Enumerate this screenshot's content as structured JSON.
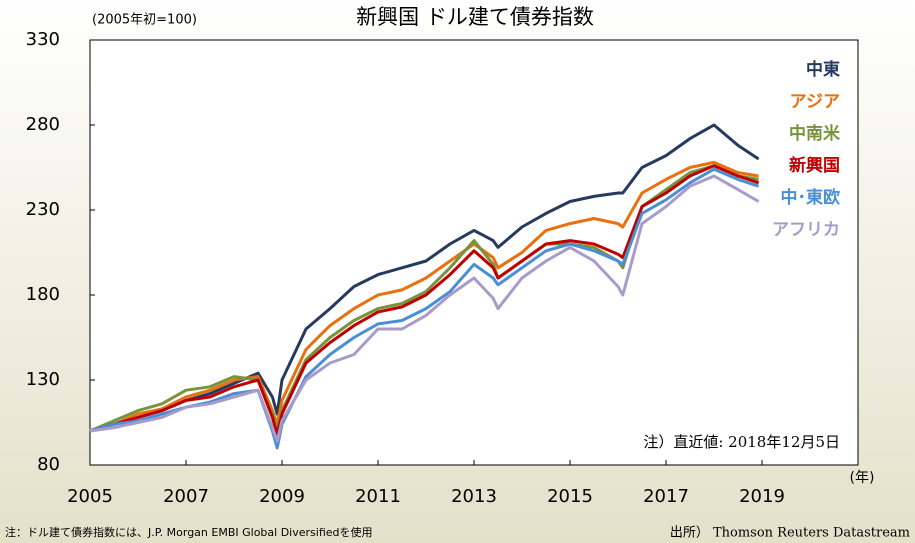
{
  "chart_data": {
    "type": "line",
    "title": "新興国 ドル建て債券指数",
    "y_label": "(2005年初=100)",
    "x_label": "(年)",
    "annotation": "注）直近値: 2018年12月5日",
    "footnote": "注：ドル建て債券指数には、J.P. Morgan EMBI Global Diversifiedを使用",
    "source": "出所） Thomson Reuters Datastream",
    "x": [
      2005,
      2005.5,
      2006,
      2006.5,
      2007,
      2007.5,
      2008,
      2008.5,
      2008.8,
      2008.9,
      2009,
      2009.5,
      2010,
      2010.5,
      2011,
      2011.5,
      2012,
      2012.5,
      2013,
      2013.4,
      2013.5,
      2014,
      2014.5,
      2015,
      2015.5,
      2016,
      2016.1,
      2016.5,
      2017,
      2017.5,
      2018,
      2018.5,
      2018.93
    ],
    "xlim": [
      2005,
      2021
    ],
    "xticks": [
      2005,
      2007,
      2009,
      2011,
      2013,
      2015,
      2017,
      2019
    ],
    "ylim": [
      80,
      330
    ],
    "yticks": [
      80,
      130,
      180,
      230,
      280,
      330
    ],
    "legend": "right",
    "series": [
      {
        "name": "中東",
        "color": "#243a5e",
        "values": [
          100,
          104,
          108,
          112,
          118,
          122,
          128,
          134,
          120,
          110,
          130,
          160,
          172,
          185,
          192,
          196,
          200,
          210,
          218,
          212,
          208,
          220,
          228,
          235,
          238,
          240,
          240,
          255,
          262,
          272,
          280,
          268,
          260
        ]
      },
      {
        "name": "アジア",
        "color": "#e8700f",
        "values": [
          100,
          104,
          110,
          113,
          120,
          124,
          130,
          132,
          112,
          104,
          118,
          148,
          162,
          172,
          180,
          183,
          190,
          200,
          210,
          202,
          196,
          205,
          218,
          222,
          225,
          222,
          220,
          240,
          248,
          255,
          258,
          252,
          250
        ]
      },
      {
        "name": "中南米",
        "color": "#77933c",
        "values": [
          100,
          106,
          112,
          116,
          124,
          126,
          132,
          130,
          110,
          100,
          112,
          142,
          155,
          165,
          172,
          175,
          182,
          196,
          212,
          198,
          190,
          200,
          210,
          210,
          208,
          200,
          196,
          232,
          242,
          252,
          256,
          250,
          248
        ]
      },
      {
        "name": "新興国",
        "color": "#c00000",
        "values": [
          100,
          104,
          108,
          112,
          118,
          120,
          126,
          130,
          108,
          98,
          110,
          140,
          152,
          162,
          170,
          173,
          180,
          192,
          206,
          196,
          190,
          200,
          210,
          212,
          210,
          204,
          202,
          232,
          240,
          250,
          256,
          250,
          246
        ]
      },
      {
        "name": "中･東欧",
        "color": "#4a8fd6",
        "values": [
          100,
          104,
          106,
          110,
          114,
          117,
          122,
          124,
          100,
          90,
          104,
          132,
          145,
          155,
          163,
          165,
          172,
          182,
          198,
          190,
          186,
          196,
          206,
          210,
          206,
          200,
          198,
          228,
          236,
          246,
          254,
          248,
          244
        ]
      },
      {
        "name": "アフリカ",
        "color": "#a99bc9",
        "values": [
          100,
          102,
          105,
          108,
          114,
          116,
          120,
          124,
          102,
          94,
          106,
          130,
          140,
          145,
          160,
          160,
          168,
          180,
          190,
          178,
          172,
          190,
          200,
          208,
          200,
          185,
          180,
          222,
          232,
          244,
          250,
          242,
          235
        ]
      }
    ]
  }
}
